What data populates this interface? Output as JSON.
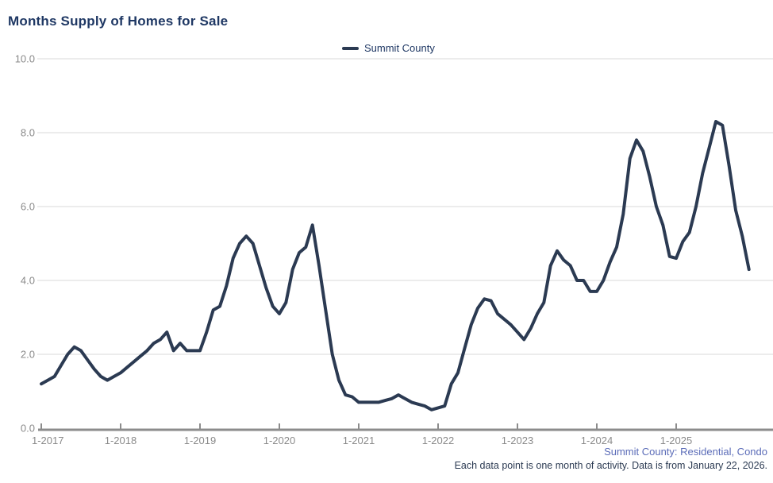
{
  "header": {
    "title": "Months Supply of Homes for Sale"
  },
  "legend": {
    "label": "Summit County"
  },
  "footer": {
    "line1": "Summit County: Residential, Condo",
    "line2": "Each data point is one month of activity. Data is from January 22, 2026."
  },
  "colors": {
    "line": "#2b3a52",
    "title": "#1f3864",
    "legend_text": "#1f3864",
    "gridline": "#d9d9d9",
    "axis_line": "#8c8c8c",
    "axis_label": "#8a8a8a",
    "footer_line1": "#5b6cb8",
    "footer_line2": "#2b3a52"
  },
  "chart_data": {
    "type": "line",
    "title": "Months Supply of Homes for Sale",
    "grid": "horizontal",
    "legend_position": "top-center",
    "ylim": [
      0,
      10
    ],
    "y_ticks": [
      0,
      2,
      4,
      6,
      8,
      10
    ],
    "y_tick_labels": [
      "0.0",
      "2.0",
      "4.0",
      "6.0",
      "8.0",
      "10.0"
    ],
    "x_tick_labels": [
      "1-2017",
      "1-2018",
      "1-2019",
      "1-2020",
      "1-2021",
      "1-2022",
      "1-2023",
      "1-2024",
      "1-2025"
    ],
    "x_tick_month_indices": [
      0,
      12,
      24,
      36,
      48,
      60,
      72,
      84,
      96
    ],
    "series": [
      {
        "name": "Summit County",
        "start_month": "1-2017",
        "end_month": "12-2025",
        "months_per_point": 1,
        "values": [
          1.2,
          1.3,
          1.4,
          1.7,
          2.0,
          2.2,
          2.1,
          1.85,
          1.6,
          1.4,
          1.3,
          1.4,
          1.5,
          1.65,
          1.8,
          1.95,
          2.1,
          2.3,
          2.4,
          2.6,
          2.1,
          2.3,
          2.1,
          2.1,
          2.1,
          2.6,
          3.2,
          3.3,
          3.85,
          4.6,
          5.0,
          5.2,
          5.0,
          4.4,
          3.8,
          3.3,
          3.1,
          3.4,
          4.3,
          4.75,
          4.9,
          5.5,
          4.4,
          3.2,
          2.0,
          1.3,
          0.9,
          0.85,
          0.7,
          0.7,
          0.7,
          0.7,
          0.75,
          0.8,
          0.9,
          0.8,
          0.7,
          0.65,
          0.6,
          0.5,
          0.55,
          0.6,
          1.2,
          1.5,
          2.15,
          2.8,
          3.25,
          3.5,
          3.45,
          3.1,
          2.95,
          2.8,
          2.6,
          2.4,
          2.7,
          3.1,
          3.4,
          4.4,
          4.8,
          4.55,
          4.4,
          4.0,
          4.0,
          3.7,
          3.7,
          4.0,
          4.5,
          4.9,
          5.8,
          7.3,
          7.8,
          7.5,
          6.8,
          6.0,
          5.5,
          4.65,
          4.6,
          5.05,
          5.3,
          6.0,
          6.9,
          7.6,
          8.3,
          8.2,
          7.1,
          5.9,
          5.2,
          4.3
        ]
      }
    ]
  }
}
